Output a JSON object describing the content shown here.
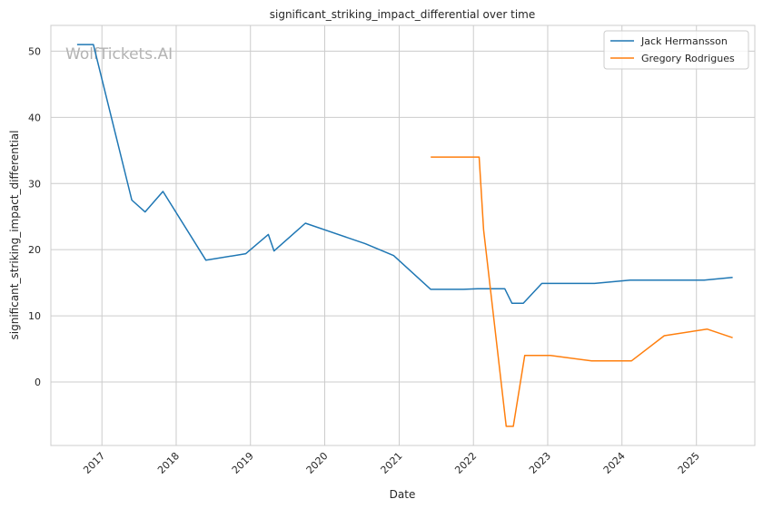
{
  "chart_data": {
    "type": "line",
    "title": "significant_striking_impact_differential over time",
    "xlabel": "Date",
    "ylabel": "significant_striking_impact_differential",
    "watermark": "WolfTickets.AI",
    "xlim": [
      "2016-04-25",
      "2025-10-15"
    ],
    "ylim": [
      -9.6,
      53.9
    ],
    "x_ticks": [
      {
        "date": "2017-01-01",
        "label": "2017"
      },
      {
        "date": "2018-01-01",
        "label": "2018"
      },
      {
        "date": "2019-01-01",
        "label": "2019"
      },
      {
        "date": "2020-01-01",
        "label": "2020"
      },
      {
        "date": "2021-01-01",
        "label": "2021"
      },
      {
        "date": "2022-01-01",
        "label": "2022"
      },
      {
        "date": "2023-01-01",
        "label": "2023"
      },
      {
        "date": "2024-01-01",
        "label": "2024"
      },
      {
        "date": "2025-01-01",
        "label": "2025"
      }
    ],
    "y_ticks": [
      0,
      10,
      20,
      30,
      40,
      50
    ],
    "grid": true,
    "legend_position": "top-right",
    "series": [
      {
        "name": "Jack Hermansson",
        "color": "#1f77b4",
        "points": [
          {
            "x": "2016-09-01",
            "y": 51.0
          },
          {
            "x": "2016-11-20",
            "y": 51.0
          },
          {
            "x": "2017-05-28",
            "y": 27.5
          },
          {
            "x": "2017-08-01",
            "y": 25.7
          },
          {
            "x": "2017-10-28",
            "y": 28.8
          },
          {
            "x": "2018-05-27",
            "y": 18.4
          },
          {
            "x": "2018-12-09",
            "y": 19.4
          },
          {
            "x": "2019-03-30",
            "y": 22.3
          },
          {
            "x": "2019-04-27",
            "y": 19.8
          },
          {
            "x": "2019-09-28",
            "y": 24.0
          },
          {
            "x": "2020-07-18",
            "y": 20.9
          },
          {
            "x": "2020-12-05",
            "y": 19.1
          },
          {
            "x": "2021-06-05",
            "y": 14.0
          },
          {
            "x": "2021-11-13",
            "y": 14.0
          },
          {
            "x": "2022-01-22",
            "y": 14.1
          },
          {
            "x": "2022-06-04",
            "y": 14.1
          },
          {
            "x": "2022-07-09",
            "y": 11.9
          },
          {
            "x": "2022-09-03",
            "y": 11.9
          },
          {
            "x": "2022-12-03",
            "y": 14.9
          },
          {
            "x": "2023-08-19",
            "y": 14.9
          },
          {
            "x": "2024-02-10",
            "y": 15.4
          },
          {
            "x": "2025-02-08",
            "y": 15.4
          },
          {
            "x": "2025-06-28",
            "y": 15.8
          }
        ]
      },
      {
        "name": "Gregory Rodrigues",
        "color": "#ff7f0e",
        "points": [
          {
            "x": "2021-06-05",
            "y": 34.0
          },
          {
            "x": "2022-01-29",
            "y": 34.0
          },
          {
            "x": "2022-02-20",
            "y": 23.0
          },
          {
            "x": "2022-06-11",
            "y": -6.7
          },
          {
            "x": "2022-07-16",
            "y": -6.7
          },
          {
            "x": "2022-09-10",
            "y": 4.0
          },
          {
            "x": "2023-01-14",
            "y": 4.0
          },
          {
            "x": "2023-08-05",
            "y": 3.2
          },
          {
            "x": "2024-02-17",
            "y": 3.2
          },
          {
            "x": "2024-07-27",
            "y": 7.0
          },
          {
            "x": "2025-02-22",
            "y": 8.0
          },
          {
            "x": "2025-06-28",
            "y": 6.7
          }
        ]
      }
    ]
  }
}
